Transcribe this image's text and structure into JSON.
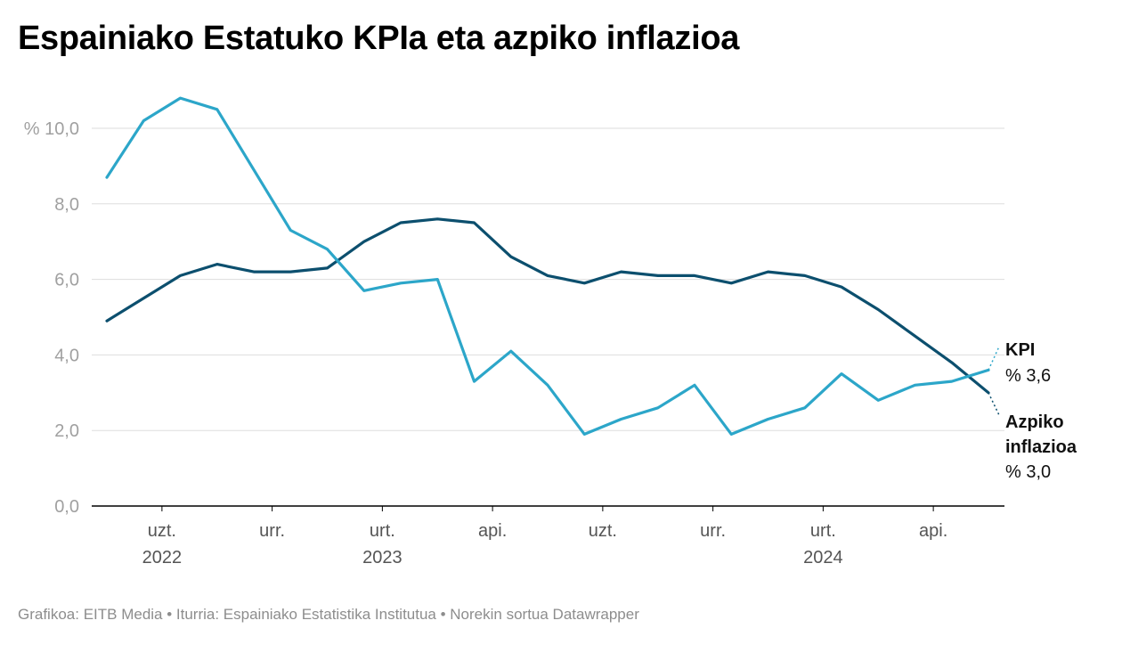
{
  "title": "Espainiako Estatuko KPIa eta azpiko inflazioa",
  "footer": "Grafikoa: EITB Media • Iturria: Espainiako Estatistika Institutua • Norekin sortua Datawrapper",
  "colors": {
    "kpi": "#2ca6c9",
    "core": "#0c4f6e",
    "grid": "#dddddd",
    "axis": "#000000"
  },
  "chart_data": {
    "type": "line",
    "title": "Espainiako Estatuko KPIa eta azpiko inflazioa",
    "ylim": [
      0,
      10
    ],
    "y_ticks": [
      {
        "value": 0,
        "label": "0,0"
      },
      {
        "value": 2,
        "label": "2,0"
      },
      {
        "value": 4,
        "label": "4,0"
      },
      {
        "value": 6,
        "label": "6,0"
      },
      {
        "value": 8,
        "label": "8,0"
      },
      {
        "value": 10,
        "label": "% 10,0"
      }
    ],
    "x_ticks": [
      {
        "index": 1.5,
        "label": "uzt.",
        "year": "2022"
      },
      {
        "index": 4.5,
        "label": "urr.",
        "year": ""
      },
      {
        "index": 7.5,
        "label": "urt.",
        "year": "2023"
      },
      {
        "index": 10.5,
        "label": "api.",
        "year": ""
      },
      {
        "index": 13.5,
        "label": "uzt.",
        "year": ""
      },
      {
        "index": 16.5,
        "label": "urr.",
        "year": ""
      },
      {
        "index": 19.5,
        "label": "urt.",
        "year": "2024"
      },
      {
        "index": 22.5,
        "label": "api.",
        "year": ""
      }
    ],
    "series": [
      {
        "id": "kpi",
        "name": "KPI",
        "value_label": "% 3,6",
        "values": [
          8.7,
          10.2,
          10.8,
          10.5,
          8.9,
          7.3,
          6.8,
          5.7,
          5.9,
          6.0,
          3.3,
          4.1,
          3.2,
          1.9,
          2.3,
          2.6,
          3.2,
          1.9,
          2.3,
          2.6,
          3.5,
          2.8,
          3.2,
          3.3,
          3.6
        ]
      },
      {
        "id": "core",
        "name": "Azpiko inflazioa",
        "name_lines": [
          "Azpiko",
          "inflazioa"
        ],
        "value_label": "% 3,0",
        "values": [
          4.9,
          5.5,
          6.1,
          6.4,
          6.2,
          6.2,
          6.3,
          7.0,
          7.5,
          7.6,
          7.5,
          6.6,
          6.1,
          5.9,
          6.2,
          6.1,
          6.1,
          5.9,
          6.2,
          6.1,
          5.8,
          5.2,
          4.5,
          3.8,
          3.0
        ]
      }
    ]
  }
}
